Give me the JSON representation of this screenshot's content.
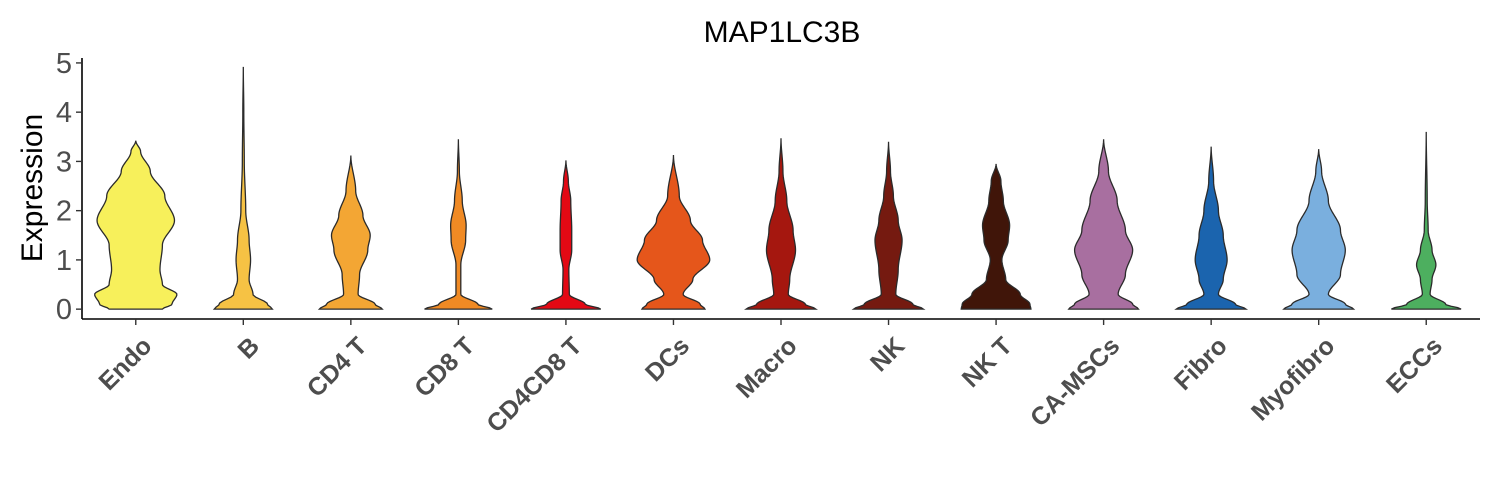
{
  "chart_data": {
    "type": "violin",
    "title": "MAP1LC3B",
    "xlabel": "",
    "ylabel": "Expression",
    "ylim": [
      -0.2,
      5.1
    ],
    "yticks": [
      0,
      1,
      2,
      3,
      4,
      5
    ],
    "grid": false,
    "legend": "none",
    "categories": [
      "Endo",
      "B",
      "CD4 T",
      "CD8 T",
      "CD4CD8 T",
      "DCs",
      "Macro",
      "NK",
      "NK T",
      "CA-MSCs",
      "Fibro",
      "Myofibro",
      "ECCs"
    ],
    "colors": [
      "#F7F05B",
      "#F6C244",
      "#F3A634",
      "#F08A24",
      "#E30914",
      "#E5561B",
      "#A5170F",
      "#751A10",
      "#401509",
      "#A86FA0",
      "#1B64AE",
      "#7AAFDE",
      "#4DAF5F"
    ],
    "series": [
      {
        "category": "Endo",
        "max": 3.42,
        "profile": [
          [
            0,
            0.55
          ],
          [
            0.1,
            0.75
          ],
          [
            0.3,
            0.85
          ],
          [
            0.5,
            0.55
          ],
          [
            0.8,
            0.5
          ],
          [
            1.3,
            0.55
          ],
          [
            1.8,
            0.8
          ],
          [
            2.3,
            0.6
          ],
          [
            2.8,
            0.3
          ],
          [
            3.2,
            0.1
          ],
          [
            3.42,
            0
          ]
        ]
      },
      {
        "category": "B",
        "max": 4.92,
        "profile": [
          [
            0,
            0.6
          ],
          [
            0.1,
            0.5
          ],
          [
            0.3,
            0.2
          ],
          [
            0.6,
            0.12
          ],
          [
            1.0,
            0.15
          ],
          [
            1.4,
            0.12
          ],
          [
            2.0,
            0.05
          ],
          [
            3.0,
            0.02
          ],
          [
            4.0,
            0.01
          ],
          [
            4.92,
            0
          ]
        ]
      },
      {
        "category": "CD4 T",
        "max": 3.12,
        "profile": [
          [
            0,
            0.65
          ],
          [
            0.1,
            0.5
          ],
          [
            0.3,
            0.15
          ],
          [
            0.7,
            0.18
          ],
          [
            1.2,
            0.35
          ],
          [
            1.5,
            0.4
          ],
          [
            1.9,
            0.25
          ],
          [
            2.4,
            0.1
          ],
          [
            3.12,
            0
          ]
        ]
      },
      {
        "category": "CD8 T",
        "max": 3.45,
        "profile": [
          [
            0,
            0.7
          ],
          [
            0.1,
            0.4
          ],
          [
            0.3,
            0.05
          ],
          [
            0.9,
            0.05
          ],
          [
            1.4,
            0.15
          ],
          [
            1.7,
            0.16
          ],
          [
            2.2,
            0.08
          ],
          [
            2.8,
            0.02
          ],
          [
            3.45,
            0
          ]
        ]
      },
      {
        "category": "CD4CD8 T",
        "max": 3.02,
        "profile": [
          [
            0,
            0.72
          ],
          [
            0.1,
            0.4
          ],
          [
            0.3,
            0.07
          ],
          [
            0.8,
            0.06
          ],
          [
            1.2,
            0.12
          ],
          [
            1.6,
            0.12
          ],
          [
            2.2,
            0.1
          ],
          [
            2.6,
            0.05
          ],
          [
            3.02,
            0
          ]
        ]
      },
      {
        "category": "DCs",
        "max": 3.13,
        "profile": [
          [
            0,
            0.65
          ],
          [
            0.1,
            0.55
          ],
          [
            0.3,
            0.2
          ],
          [
            0.6,
            0.4
          ],
          [
            1.0,
            0.75
          ],
          [
            1.4,
            0.6
          ],
          [
            1.8,
            0.35
          ],
          [
            2.3,
            0.12
          ],
          [
            3.13,
            0
          ]
        ]
      },
      {
        "category": "Macro",
        "max": 3.47,
        "profile": [
          [
            0,
            0.72
          ],
          [
            0.1,
            0.5
          ],
          [
            0.3,
            0.15
          ],
          [
            0.6,
            0.18
          ],
          [
            1.2,
            0.3
          ],
          [
            1.6,
            0.25
          ],
          [
            2.2,
            0.12
          ],
          [
            2.8,
            0.04
          ],
          [
            3.47,
            0
          ]
        ]
      },
      {
        "category": "NK",
        "max": 3.4,
        "profile": [
          [
            0,
            0.72
          ],
          [
            0.1,
            0.5
          ],
          [
            0.3,
            0.15
          ],
          [
            0.8,
            0.2
          ],
          [
            1.4,
            0.28
          ],
          [
            1.8,
            0.2
          ],
          [
            2.3,
            0.1
          ],
          [
            2.8,
            0.04
          ],
          [
            3.4,
            0
          ]
        ]
      },
      {
        "category": "NK T",
        "max": 2.95,
        "profile": [
          [
            0,
            0.72
          ],
          [
            0.1,
            0.7
          ],
          [
            0.3,
            0.5
          ],
          [
            0.6,
            0.2
          ],
          [
            1.0,
            0.12
          ],
          [
            1.4,
            0.25
          ],
          [
            1.7,
            0.28
          ],
          [
            2.2,
            0.15
          ],
          [
            2.6,
            0.1
          ],
          [
            2.95,
            0
          ]
        ]
      },
      {
        "category": "CA-MSCs",
        "max": 3.45,
        "profile": [
          [
            0,
            0.72
          ],
          [
            0.1,
            0.6
          ],
          [
            0.3,
            0.3
          ],
          [
            0.7,
            0.45
          ],
          [
            1.2,
            0.6
          ],
          [
            1.6,
            0.45
          ],
          [
            2.2,
            0.28
          ],
          [
            2.8,
            0.1
          ],
          [
            3.45,
            0
          ]
        ]
      },
      {
        "category": "Fibro",
        "max": 3.3,
        "profile": [
          [
            0,
            0.72
          ],
          [
            0.1,
            0.5
          ],
          [
            0.3,
            0.15
          ],
          [
            0.6,
            0.25
          ],
          [
            1.0,
            0.33
          ],
          [
            1.5,
            0.25
          ],
          [
            2.0,
            0.15
          ],
          [
            2.6,
            0.05
          ],
          [
            3.3,
            0
          ]
        ]
      },
      {
        "category": "Myofibro",
        "max": 3.25,
        "profile": [
          [
            0,
            0.72
          ],
          [
            0.1,
            0.55
          ],
          [
            0.3,
            0.2
          ],
          [
            0.7,
            0.45
          ],
          [
            1.2,
            0.55
          ],
          [
            1.6,
            0.45
          ],
          [
            2.2,
            0.2
          ],
          [
            2.8,
            0.06
          ],
          [
            3.25,
            0
          ]
        ]
      },
      {
        "category": "ECCs",
        "max": 3.6,
        "profile": [
          [
            0,
            0.72
          ],
          [
            0.1,
            0.4
          ],
          [
            0.3,
            0.08
          ],
          [
            0.6,
            0.12
          ],
          [
            0.9,
            0.2
          ],
          [
            1.2,
            0.12
          ],
          [
            1.6,
            0.04
          ],
          [
            2.2,
            0.02
          ],
          [
            3.6,
            0
          ]
        ]
      }
    ]
  }
}
